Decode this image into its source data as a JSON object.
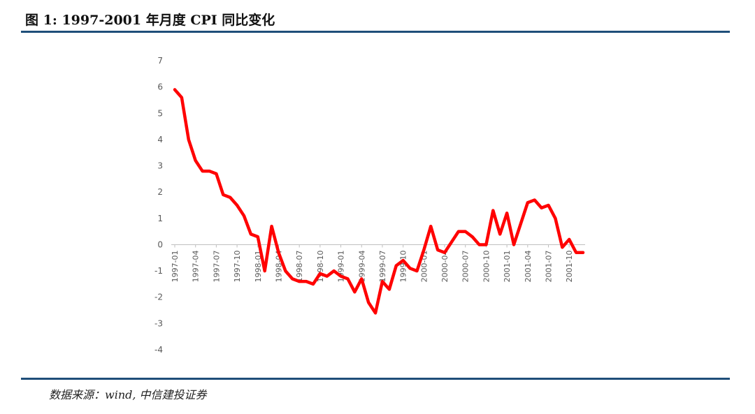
{
  "header": {
    "title": "图 1: 1997-2001 年月度 CPI 同比变化"
  },
  "footer": {
    "source": "数据来源：wind, 中信建投证券"
  },
  "colors": {
    "line": "#ff0000",
    "rule": "#1f4e79",
    "axis": "#bfbfbf",
    "tick_text": "#595959"
  },
  "chart_data": {
    "type": "line",
    "title": "",
    "xlabel": "",
    "ylabel": "",
    "ylim": [
      -4,
      7
    ],
    "yticks": [
      7,
      6,
      5,
      4,
      3,
      2,
      1,
      0,
      -1,
      -2,
      -3,
      -4
    ],
    "grid": false,
    "legend": "none",
    "x_tick_labels": [
      "1997-01",
      "1997-04",
      "1997-07",
      "1997-10",
      "1998-01",
      "1998-04",
      "1998-07",
      "1998-10",
      "1999-01",
      "1999-04",
      "1999-07",
      "1999-10",
      "2000-01",
      "2000-04",
      "2000-07",
      "2000-10",
      "2001-01",
      "2001-04",
      "2001-07",
      "2001-10"
    ],
    "x": [
      "1997-01",
      "1997-02",
      "1997-03",
      "1997-04",
      "1997-05",
      "1997-06",
      "1997-07",
      "1997-08",
      "1997-09",
      "1997-10",
      "1997-11",
      "1997-12",
      "1998-01",
      "1998-02",
      "1998-03",
      "1998-04",
      "1998-05",
      "1998-06",
      "1998-07",
      "1998-08",
      "1998-09",
      "1998-10",
      "1998-11",
      "1998-12",
      "1999-01",
      "1999-02",
      "1999-03",
      "1999-04",
      "1999-05",
      "1999-06",
      "1999-07",
      "1999-08",
      "1999-09",
      "1999-10",
      "1999-11",
      "1999-12",
      "2000-01",
      "2000-02",
      "2000-03",
      "2000-04",
      "2000-05",
      "2000-06",
      "2000-07",
      "2000-08",
      "2000-09",
      "2000-10",
      "2000-11",
      "2000-12",
      "2001-01",
      "2001-02",
      "2001-03",
      "2001-04",
      "2001-05",
      "2001-06",
      "2001-07",
      "2001-08",
      "2001-09",
      "2001-10",
      "2001-11",
      "2001-12"
    ],
    "series": [
      {
        "values": [
          5.9,
          5.6,
          4.0,
          3.2,
          2.8,
          2.8,
          2.7,
          1.9,
          1.8,
          1.5,
          1.1,
          0.4,
          0.3,
          -1.0,
          0.7,
          -0.3,
          -1.0,
          -1.3,
          -1.4,
          -1.4,
          -1.5,
          -1.1,
          -1.2,
          -1.0,
          -1.2,
          -1.3,
          -1.8,
          -1.3,
          -2.2,
          -2.6,
          -1.4,
          -1.7,
          -0.8,
          -0.6,
          -0.9,
          -1.0,
          -0.2,
          0.7,
          -0.2,
          -0.3,
          0.1,
          0.5,
          0.5,
          0.3,
          0.0,
          0.0,
          1.3,
          0.4,
          1.2,
          0.0,
          0.8,
          1.6,
          1.7,
          1.4,
          1.5,
          1.0,
          -0.1,
          0.2,
          -0.3,
          -0.3
        ]
      }
    ]
  }
}
